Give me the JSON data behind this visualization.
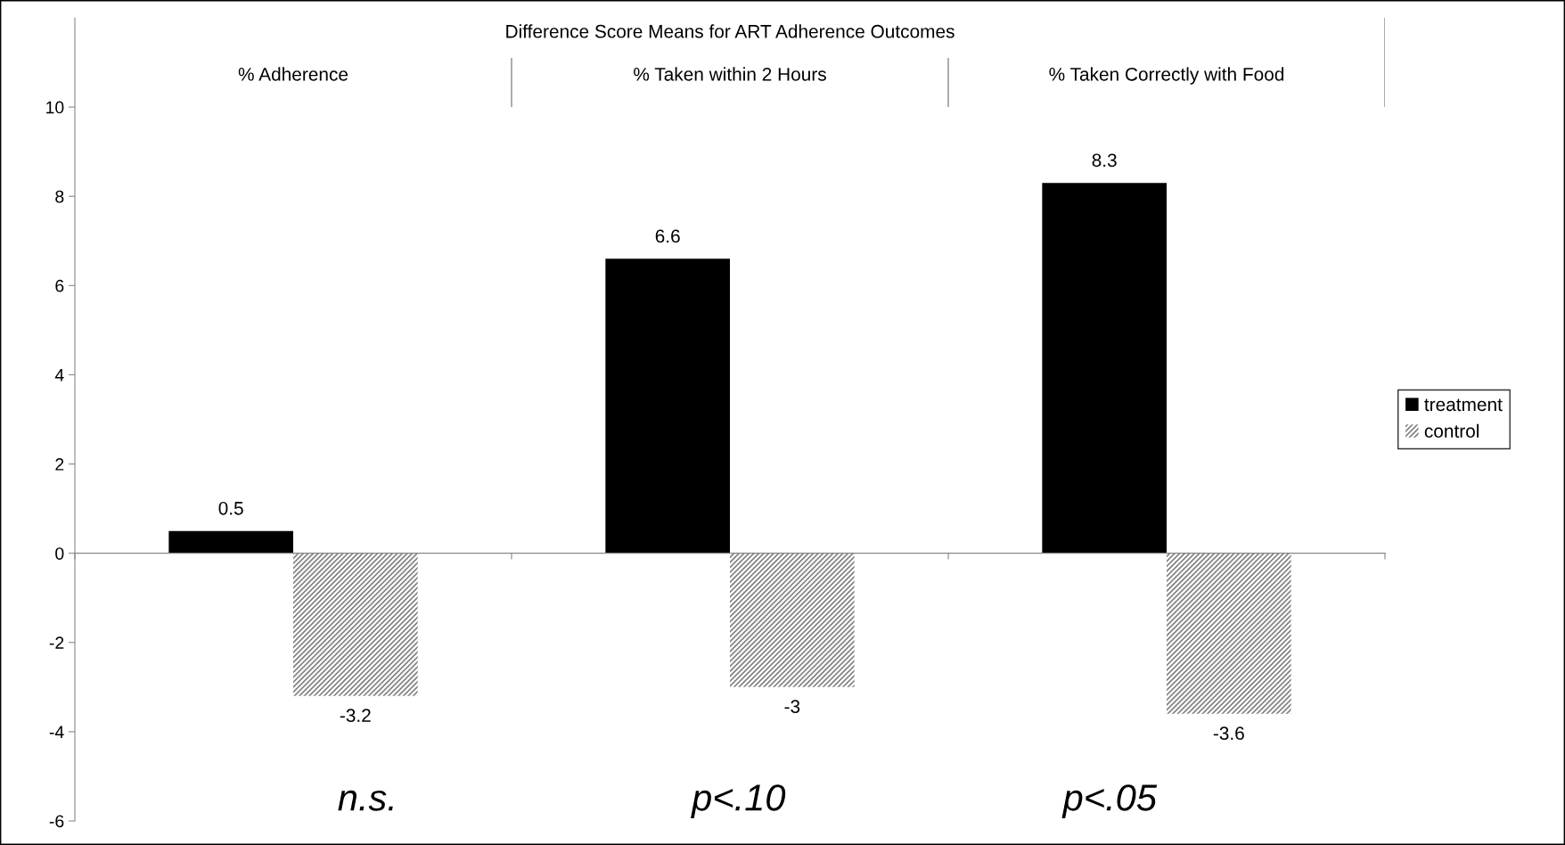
{
  "chart_data": {
    "type": "bar",
    "title": "Difference Score Means for ART Adherence Outcomes",
    "categories": [
      "% Adherence",
      "% Taken within 2 Hours",
      "% Taken Correctly with Food"
    ],
    "series": [
      {
        "name": "treatment",
        "color": "#000000",
        "values": [
          0.5,
          6.6,
          8.3
        ]
      },
      {
        "name": "control",
        "color": "#808080",
        "values": [
          -3.2,
          -3,
          -3.6
        ]
      }
    ],
    "ylim": [
      -6,
      12
    ],
    "yticks": [
      -6,
      -4,
      -2,
      0,
      2,
      4,
      6,
      8,
      10
    ],
    "data_labels": true,
    "legend": "right",
    "annotations": [
      "n.s.",
      "p<.10",
      "p<.05"
    ]
  }
}
